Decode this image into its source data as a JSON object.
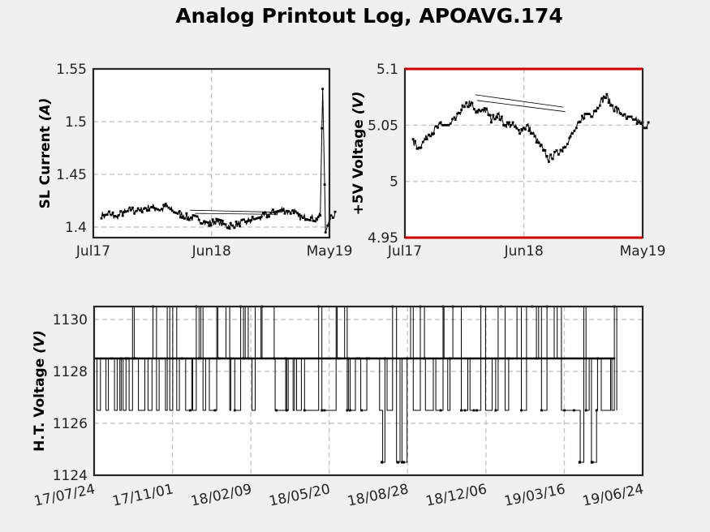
{
  "title": "Analog Printout Log, APOAVG.174",
  "chart_data": [
    {
      "type": "line",
      "name": "sl-current",
      "ylabel_main": "SL Current",
      "ylabel_unit": "(A)",
      "ylim": [
        1.39,
        1.55
      ],
      "yticks": [
        "1.4",
        "1.45",
        "1.5",
        "1.55"
      ],
      "xticks": [
        "Jul17",
        "Jun18",
        "May19"
      ],
      "grid": true,
      "series": [
        {
          "x": [
            "2017-07-24",
            "2017-08-15",
            "2017-09-05",
            "2017-09-25",
            "2017-10-15",
            "2017-11-05",
            "2017-11-25",
            "2017-12-15",
            "2018-01-05",
            "2018-01-25",
            "2018-02-15",
            "2018-03-05",
            "2018-03-25",
            "2018-04-15",
            "2018-05-05",
            "2018-05-25",
            "2018-06-15",
            "2018-07-05",
            "2018-07-25",
            "2018-08-15",
            "2018-09-05",
            "2018-09-25",
            "2018-10-15",
            "2018-11-05",
            "2018-11-25",
            "2018-12-15",
            "2019-01-05",
            "2019-01-20",
            "2019-01-25",
            "2019-02-10",
            "2019-02-25",
            "2019-03-10",
            "2019-03-25",
            "2019-04-05",
            "2019-04-12",
            "2019-04-20",
            "2019-05-05",
            "2019-05-20"
          ],
          "y": [
            1.411,
            1.412,
            1.41,
            1.414,
            1.416,
            1.415,
            1.418,
            1.419,
            1.416,
            1.42,
            1.414,
            1.412,
            1.41,
            1.408,
            1.406,
            1.404,
            1.405,
            1.403,
            1.401,
            1.403,
            1.405,
            1.407,
            1.409,
            1.412,
            1.414,
            1.416,
            1.415,
            1.416,
            1.412,
            1.408,
            1.41,
            1.409,
            1.408,
            1.411,
            1.531,
            1.395,
            1.411,
            1.412
          ]
        }
      ]
    },
    {
      "type": "line",
      "name": "5v-voltage",
      "ylabel_main": "+5V Voltage",
      "ylabel_unit": "(V)",
      "ylim": [
        4.95,
        5.1
      ],
      "yticks": [
        "4.95",
        "5",
        "5.05",
        "5.1"
      ],
      "xticks": [
        "Jul17",
        "Jun18",
        "May19"
      ],
      "grid": true,
      "limit_color": "#cc0000",
      "limits": [
        4.95,
        5.1
      ],
      "series": [
        {
          "x": [
            "2017-07-24",
            "2017-08-10",
            "2017-09-01",
            "2017-09-20",
            "2017-10-10",
            "2017-11-01",
            "2017-11-20",
            "2017-12-10",
            "2018-01-01",
            "2018-01-20",
            "2018-02-10",
            "2018-03-01",
            "2018-03-20",
            "2018-04-10",
            "2018-05-01",
            "2018-05-20",
            "2018-06-10",
            "2018-07-01",
            "2018-07-20",
            "2018-08-10",
            "2018-09-01",
            "2018-09-20",
            "2018-10-10",
            "2018-11-01",
            "2018-11-20",
            "2018-12-10",
            "2019-01-01",
            "2019-01-20",
            "2019-02-10",
            "2019-03-01",
            "2019-03-20",
            "2019-04-10",
            "2019-05-01",
            "2019-05-20"
          ],
          "y": [
            5.035,
            5.03,
            5.04,
            5.045,
            5.05,
            5.05,
            5.055,
            5.065,
            5.07,
            5.06,
            5.065,
            5.055,
            5.06,
            5.05,
            5.05,
            5.045,
            5.05,
            5.04,
            5.03,
            5.02,
            5.025,
            5.03,
            5.04,
            5.05,
            5.06,
            5.06,
            5.07,
            5.075,
            5.065,
            5.06,
            5.055,
            5.055,
            5.05,
            5.05
          ]
        }
      ]
    },
    {
      "type": "line",
      "name": "ht-voltage",
      "ylabel_main": "H.T. Voltage",
      "ylabel_unit": "(V)",
      "ylim": [
        1124,
        1130.5
      ],
      "yticks": [
        "1124",
        "1126",
        "1128",
        "1130"
      ],
      "xticks": [
        "17/07/24",
        "17/11/01",
        "18/02/09",
        "18/05/20",
        "18/08/28",
        "18/12/06",
        "19/03/16",
        "19/06/24"
      ],
      "grid": true,
      "levels": [
        1126.5,
        1128.5,
        1130.5
      ],
      "rare_low": 1124.5,
      "series": [
        {
          "x": [
            "2017-07-24",
            "2017-08-05",
            "2017-08-20",
            "2017-09-10",
            "2017-10-01",
            "2017-10-20",
            "2017-11-10",
            "2017-12-01",
            "2017-12-20",
            "2018-01-10",
            "2018-02-01",
            "2018-02-20",
            "2018-03-10",
            "2018-04-01",
            "2018-04-20",
            "2018-05-10",
            "2018-06-01",
            "2018-06-20",
            "2018-07-10",
            "2018-08-01",
            "2018-08-20",
            "2018-09-10",
            "2018-10-01",
            "2018-10-20",
            "2018-11-10",
            "2018-12-01",
            "2018-12-20",
            "2019-01-10",
            "2019-02-01",
            "2019-02-20",
            "2019-03-10",
            "2019-04-01",
            "2019-04-20",
            "2019-05-10",
            "2019-05-20"
          ],
          "y": [
            1128.5,
            1126.5,
            1128.5,
            1126.5,
            1130.5,
            1128.5,
            1126.5,
            1130.5,
            1128.5,
            1130.5,
            1126.5,
            1130.5,
            1128.5,
            1130.5,
            1126.5,
            1124.5,
            1126.5,
            1128.5,
            1130.5,
            1126.5,
            1124.5,
            1128.5,
            1130.5,
            1128.5,
            1126.5,
            1128.5,
            1130.5,
            1126.5,
            1128.5,
            1130.5,
            1128.5,
            1126.5,
            1124.5,
            1126.5,
            1128.5
          ]
        }
      ]
    }
  ]
}
